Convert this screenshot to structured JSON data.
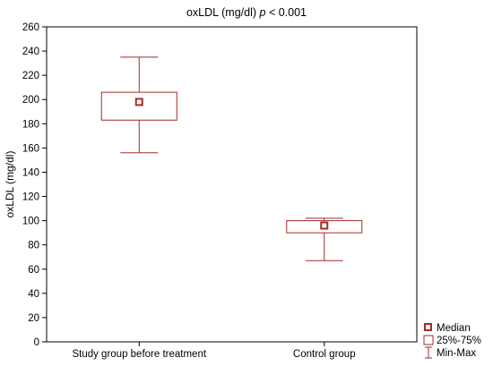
{
  "chart_data": {
    "type": "boxplot",
    "title_main": "oxLDL (mg/dl)",
    "title_p": "p",
    "title_rest": " < 0.001",
    "ylabel": "oxLDL (mg/dl)",
    "ylim": [
      0,
      260
    ],
    "yticks": [
      0,
      20,
      40,
      60,
      80,
      100,
      120,
      140,
      160,
      180,
      200,
      220,
      240,
      260
    ],
    "categories": [
      "Study group before treatment",
      "Control group"
    ],
    "boxes": [
      {
        "category": "Study group before treatment",
        "min": 156,
        "q1": 183,
        "median": 198,
        "q3": 206,
        "max": 235
      },
      {
        "category": "Control group",
        "min": 67,
        "q1": 90,
        "median": 96,
        "q3": 100,
        "max": 102
      }
    ],
    "legend": [
      {
        "key": "median",
        "label": "Median"
      },
      {
        "key": "box",
        "label": "25%-75%"
      },
      {
        "key": "whisker",
        "label": "Min-Max"
      }
    ],
    "grid": false,
    "legend_position": "bottom-right",
    "colors": {
      "box": "#a52a2a",
      "axis": "#000000"
    }
  }
}
